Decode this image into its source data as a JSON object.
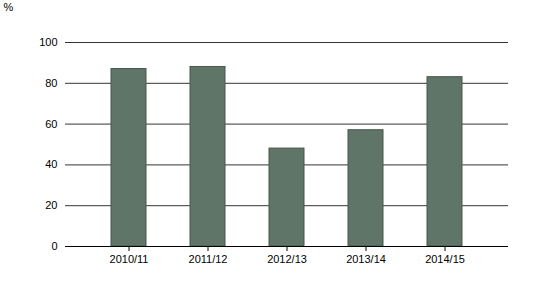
{
  "chart_data": {
    "type": "bar",
    "categories": [
      "2010/11",
      "2011/12",
      "2012/13",
      "2013/14",
      "2014/15"
    ],
    "values": [
      87,
      88,
      48,
      57,
      83
    ],
    "color": "#5f7567",
    "y_label": "%",
    "ylim": [
      0,
      100
    ],
    "yticks": [
      0,
      20,
      40,
      60,
      80,
      100
    ],
    "grid": true
  }
}
